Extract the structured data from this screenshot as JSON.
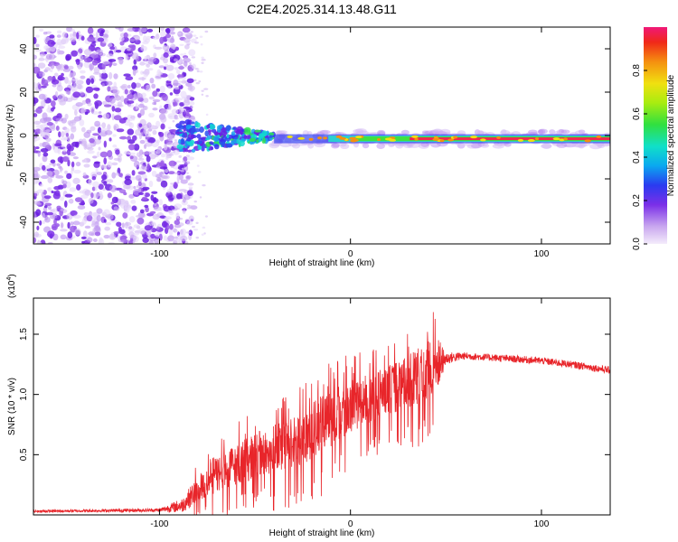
{
  "title": "C2E4.2025.314.13.48.G11",
  "chart_data": [
    {
      "type": "heatmap",
      "name": "spectrogram",
      "xlabel": "Height of straight line (km)",
      "ylabel": "Frequency (Hz)",
      "xlim": [
        -166,
        136
      ],
      "ylim": [
        -50,
        50
      ],
      "xticks": [
        -100,
        0,
        100
      ],
      "xtick_labels": [
        "-100",
        "0",
        "100"
      ],
      "yticks": [
        -40,
        -20,
        0,
        20,
        40
      ],
      "ytick_labels": [
        "-40",
        "-20",
        "0",
        "20",
        "40"
      ],
      "colorbar": {
        "label": "Normalized spectral amplitude",
        "range": [
          0,
          1
        ],
        "ticks": [
          0.0,
          0.2,
          0.4,
          0.6,
          0.8
        ],
        "tick_labels": [
          "0.0",
          "0.2",
          "0.4",
          "0.6",
          "0.8"
        ]
      },
      "signal_line_hz": -1.5,
      "noise_region_km": [
        -166,
        -90
      ],
      "transition_region_km": [
        -90,
        -40
      ],
      "narrowband_region_km": [
        -40,
        136
      ]
    },
    {
      "type": "line",
      "name": "snr",
      "xlabel": "Height of straight line (km)",
      "ylabel": "SNR (10 * v/v)",
      "scale_label": "(x10",
      "scale_exp": "4",
      "scale_close": ")",
      "xlim": [
        -166,
        136
      ],
      "ylim": [
        0,
        1.8
      ],
      "xticks": [
        -100,
        0,
        100
      ],
      "xtick_labels": [
        "-100",
        "0",
        "100"
      ],
      "yticks": [
        0.5,
        1.0,
        1.5
      ],
      "ytick_labels": [
        "0.5",
        "1.0",
        "1.5"
      ],
      "color": "#e8252a",
      "envelope_x": [
        -166,
        -100,
        -88,
        -75,
        -60,
        -45,
        -30,
        -15,
        0,
        15,
        30,
        40,
        45,
        50,
        60,
        80,
        100,
        120,
        136
      ],
      "envelope_y": [
        0.03,
        0.04,
        0.08,
        0.3,
        0.42,
        0.52,
        0.6,
        0.75,
        0.9,
        1.0,
        1.1,
        1.2,
        1.25,
        1.3,
        1.32,
        1.3,
        1.28,
        1.24,
        1.2
      ],
      "spread_y": [
        0.01,
        0.015,
        0.06,
        0.15,
        0.17,
        0.2,
        0.22,
        0.24,
        0.22,
        0.2,
        0.22,
        0.25,
        0.25,
        0.05,
        0.03,
        0.03,
        0.03,
        0.03,
        0.03
      ]
    }
  ]
}
